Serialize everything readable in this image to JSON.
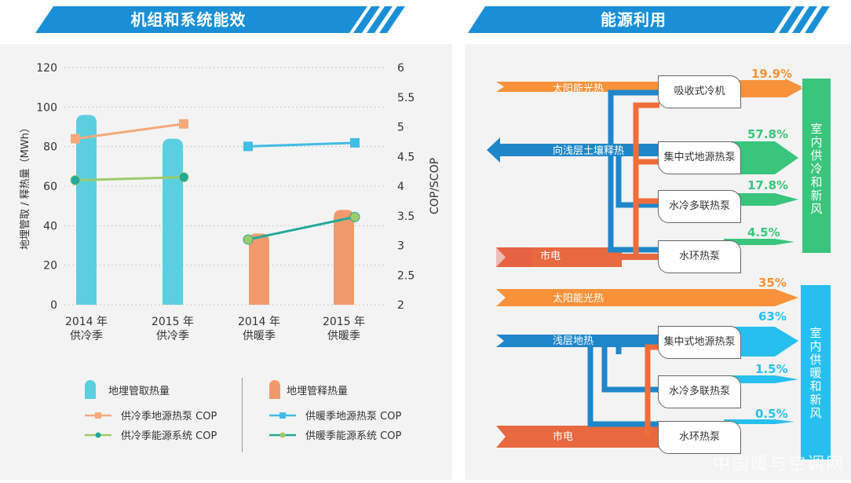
{
  "left_title": "机组和系统能效",
  "right_title": "能源利用",
  "chart_data": {
    "type": "bar",
    "categories": [
      "2014 年\n供冷季",
      "2015 年\n供冷季",
      "2014 年\n供暖季",
      "2015 年\n供暖季"
    ],
    "ylabel": "地埋管取 / 释热量（MWh）",
    "y2label": "COP/SCOP",
    "ylim": [
      0,
      120
    ],
    "y_ticks": [
      "0",
      "20",
      "40",
      "60",
      "80",
      "100",
      "120"
    ],
    "y2lim": [
      2,
      6
    ],
    "y2_ticks": [
      "2",
      "2.5",
      "3",
      "3.5",
      "4",
      "4.5",
      "5",
      "5.5",
      "6"
    ],
    "bars": [
      {
        "name": "地埋管取热量",
        "color": "#5bcfe0",
        "values": [
          96,
          84,
          null,
          null
        ]
      },
      {
        "name": "地埋管释热量",
        "color": "#f09a6c",
        "values": [
          null,
          null,
          36,
          48
        ]
      }
    ],
    "series": [
      {
        "name": "供冷季地源热泵 COP",
        "color": "#f5a97a",
        "marker": "square",
        "points": [
          [
            0,
            4.8
          ],
          [
            1,
            5.05
          ]
        ]
      },
      {
        "name": "供冷季能源系统 COP",
        "color": "#9dcb6a",
        "marker": "circle",
        "points": [
          [
            0,
            4.1
          ],
          [
            1,
            4.15
          ]
        ]
      },
      {
        "name": "供暖季地源热泵 COP",
        "color": "#3fbde6",
        "marker": "square",
        "points": [
          [
            2,
            4.67
          ],
          [
            3,
            4.73
          ]
        ]
      },
      {
        "name": "供暖季能源系统 COP",
        "color": "#23a99a",
        "marker": "circle",
        "points": [
          [
            2,
            3.1
          ],
          [
            3,
            3.48
          ]
        ]
      }
    ],
    "grid": true
  },
  "flow_top": {
    "sources": [
      "太阳能光热",
      "向浅层土壤释热",
      "市电"
    ],
    "devices": [
      "吸收式冷机",
      "集中式地源热泵",
      "水冷多联热泵",
      "水环热泵"
    ],
    "percentages": [
      "19.9%",
      "57.8%",
      "17.8%",
      "4.5%"
    ],
    "target": "室内供冷和新风"
  },
  "flow_bottom": {
    "sources": [
      "太阳能光热",
      "浅层地热",
      "市电"
    ],
    "devices": [
      "集中式地源热泵",
      "水冷多联热泵",
      "水环热泵"
    ],
    "percentages": [
      "35%",
      "63%",
      "1.5%",
      "0.5%"
    ],
    "target": "室内供暖和新风"
  },
  "watermark": "中国暖与空调网",
  "colors": {
    "banner": "#1a8fd6",
    "orange": "#f7923a",
    "blue": "#1f86c9",
    "red": "#e8683f",
    "green": "#39c57c",
    "cyan": "#27c0ee"
  }
}
